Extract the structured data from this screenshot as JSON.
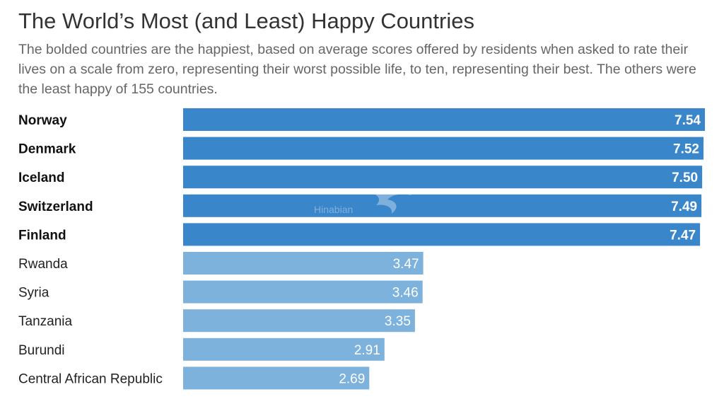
{
  "chart_data": {
    "type": "bar",
    "orientation": "horizontal",
    "title": "The World’s Most (and Least) Happy Countries",
    "subtitle": "The bolded countries are the happiest, based on average scores offered by residents when asked to rate their lives on a scale from zero, representing their worst possible life, to ten, representing their best. The others were the least happy of 155 countries.",
    "categories": [
      "Norway",
      "Denmark",
      "Iceland",
      "Switzerland",
      "Finland",
      "Rwanda",
      "Syria",
      "Tanzania",
      "Burundi",
      "Central African Republic"
    ],
    "values": [
      7.54,
      7.52,
      7.5,
      7.49,
      7.47,
      3.47,
      3.46,
      3.35,
      2.91,
      2.69
    ],
    "value_labels": [
      "7.54",
      "7.52",
      "7.50",
      "7.49",
      "7.47",
      "3.47",
      "3.46",
      "3.35",
      "2.91",
      "2.69"
    ],
    "bold": [
      true,
      true,
      true,
      true,
      true,
      false,
      false,
      false,
      false,
      false
    ],
    "xlim": [
      0,
      7.54
    ],
    "grid": false,
    "legend": "none",
    "colors": {
      "happiest": "#3a86cb",
      "least_happy": "#7db2dc"
    }
  },
  "watermark": {
    "logo": "Hinabian",
    "icon": "swirl-logo-icon"
  }
}
